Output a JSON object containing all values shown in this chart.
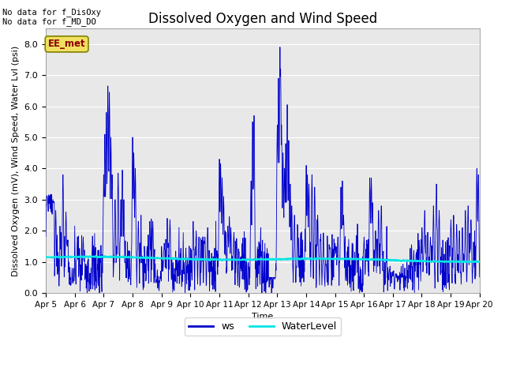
{
  "title": "Dissolved Oxygen and Wind Speed",
  "xlabel": "Time",
  "ylabel": "Dissolved Oxygen (mV), Wind Speed, Water Lvl (psi)",
  "ylim": [
    0.0,
    8.5
  ],
  "yticks": [
    0.0,
    1.0,
    2.0,
    3.0,
    4.0,
    5.0,
    6.0,
    7.0,
    8.0
  ],
  "date_labels": [
    "Apr 5",
    "Apr 6",
    "Apr 7",
    "Apr 8",
    "Apr 9",
    "Apr 10",
    "Apr 11",
    "Apr 12",
    "Apr 13",
    "Apr 14",
    "Apr 15",
    "Apr 16",
    "Apr 17",
    "Apr 18",
    "Apr 19",
    "Apr 20"
  ],
  "ws_color": "#0000cc",
  "water_color": "#00e5e5",
  "annotation_text": "No data for f_DisOxy\nNo data for f_MD_DO",
  "box_label": "EE_met",
  "legend_labels": [
    "ws",
    "WaterLevel"
  ],
  "background_color": "#e8e8e8",
  "title_fontsize": 12,
  "axis_fontsize": 8,
  "tick_fontsize": 8,
  "seed": 7
}
